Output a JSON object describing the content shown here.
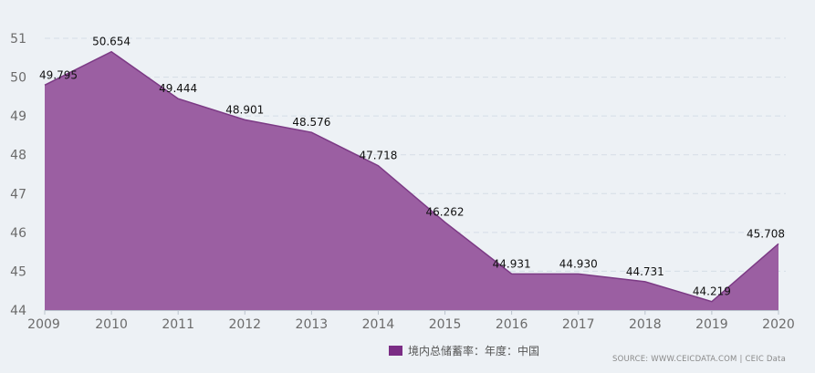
{
  "chart_data": {
    "type": "area",
    "x": [
      "2009",
      "2010",
      "2011",
      "2012",
      "2013",
      "2014",
      "2015",
      "2016",
      "2017",
      "2018",
      "2019",
      "2020"
    ],
    "series": [
      {
        "name": "境内总储蓄率：年度：中国",
        "values": [
          49.795,
          50.654,
          49.444,
          48.901,
          48.576,
          47.718,
          46.262,
          44.931,
          44.93,
          44.731,
          44.219,
          45.708
        ],
        "labels": [
          "49.795",
          "50.654",
          "49.444",
          "48.901",
          "48.576",
          "47.718",
          "46.262",
          "44.931",
          "44.930",
          "44.731",
          "44.219",
          "45.708"
        ],
        "color": "#8e4a94"
      }
    ],
    "ylim": [
      44,
      51
    ],
    "yticks": [
      "44",
      "45",
      "46",
      "47",
      "48",
      "49",
      "50",
      "51"
    ],
    "grid": true,
    "legend": "bottom"
  },
  "source": "SOURCE: WWW.CEICDATA.COM | CEIC Data",
  "colors": {
    "fill": "#9b5fa2",
    "line": "#7c3a85",
    "legend_swatch": "#7b2d85",
    "grid": "#d5dde6",
    "background": "#edf1f5"
  }
}
